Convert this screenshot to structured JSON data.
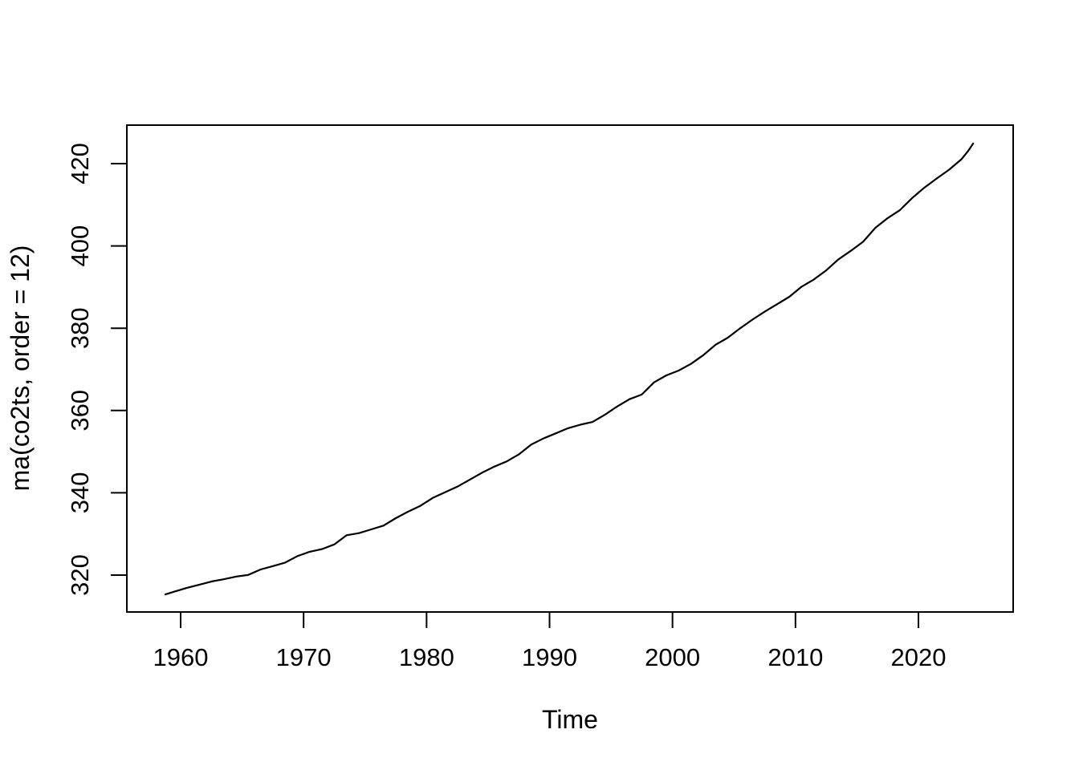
{
  "chart_data": {
    "type": "line",
    "title": "",
    "xlabel": "Time",
    "ylabel": "ma(co2ts, order = 12)",
    "x_tick_labels": [
      "1960",
      "1970",
      "1980",
      "1990",
      "2000",
      "2010",
      "2020"
    ],
    "x_tick_values": [
      1960,
      1970,
      1980,
      1990,
      2000,
      2010,
      2020
    ],
    "y_tick_labels": [
      "320",
      "340",
      "360",
      "380",
      "400",
      "420"
    ],
    "y_tick_values": [
      320,
      340,
      360,
      380,
      400,
      420
    ],
    "xlim": [
      1956.1,
      2027.3
    ],
    "ylim": [
      310.8,
      429.3
    ],
    "grid": false,
    "legend": "none",
    "line_color": "#000000",
    "axis_color": "#000000",
    "background_color": "#ffffff",
    "series": [
      {
        "name": "ma(co2ts, order = 12)",
        "x": [
          1958.75,
          1959.5,
          1960.5,
          1961.5,
          1962.5,
          1963.5,
          1964.5,
          1965.5,
          1966.5,
          1967.5,
          1968.5,
          1969.5,
          1970.5,
          1971.5,
          1972.5,
          1973.5,
          1974.5,
          1975.5,
          1976.5,
          1977.5,
          1978.5,
          1979.5,
          1980.5,
          1981.5,
          1982.5,
          1983.5,
          1984.5,
          1985.5,
          1986.5,
          1987.5,
          1988.5,
          1989.5,
          1990.5,
          1991.5,
          1992.5,
          1993.5,
          1994.5,
          1995.5,
          1996.5,
          1997.5,
          1998.5,
          1999.5,
          2000.5,
          2001.5,
          2002.5,
          2003.5,
          2004.5,
          2005.5,
          2006.5,
          2007.5,
          2008.5,
          2009.5,
          2010.5,
          2011.5,
          2012.5,
          2013.5,
          2014.5,
          2015.5,
          2016.5,
          2017.5,
          2018.5,
          2019.5,
          2020.5,
          2021.5,
          2022.5,
          2023.5,
          2024.0,
          2024.45
        ],
        "y": [
          315.3,
          315.98,
          316.91,
          317.64,
          318.45,
          318.99,
          319.62,
          320.04,
          321.37,
          322.18,
          323.05,
          324.62,
          325.68,
          326.32,
          327.46,
          329.68,
          330.19,
          331.12,
          332.03,
          333.84,
          335.41,
          336.84,
          338.76,
          340.12,
          341.48,
          343.15,
          344.87,
          346.35,
          347.61,
          349.31,
          351.69,
          353.2,
          354.45,
          355.7,
          356.54,
          357.21,
          358.96,
          360.97,
          362.74,
          363.88,
          366.84,
          368.54,
          369.71,
          371.32,
          373.45,
          375.98,
          377.7,
          379.98,
          382.09,
          384.02,
          385.83,
          387.64,
          390.1,
          391.85,
          394.06,
          396.74,
          398.81,
          401.01,
          404.41,
          406.76,
          408.72,
          411.65,
          414.21,
          416.41,
          418.53,
          421.08,
          422.9,
          424.9
        ]
      }
    ]
  }
}
